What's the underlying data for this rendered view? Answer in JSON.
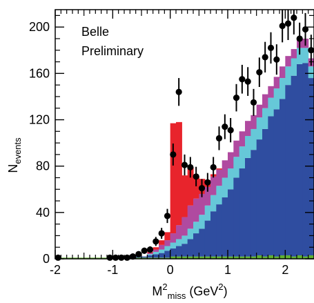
{
  "chart_data": {
    "type": "bar",
    "stacked": true,
    "ylabel": {
      "main": "N",
      "sub": "events"
    },
    "xlabel": {
      "prefix": "M",
      "sup": "2",
      "sub": "miss",
      "unit_open": " (GeV",
      "unit_sup": "2",
      "unit_close": ")"
    },
    "annotation": [
      "Belle",
      "Preliminary"
    ],
    "xlim": [
      -2.0,
      2.5
    ],
    "ylim": [
      0,
      215
    ],
    "x_ticks": [
      -2,
      -1,
      0,
      1,
      2
    ],
    "y_ticks": [
      0,
      40,
      80,
      120,
      160,
      200
    ],
    "bin_width": 0.1,
    "bin_start": -2.0,
    "colors": {
      "green": "#5fb030",
      "blue": "#2f4da0",
      "cyan": "#66c8d8",
      "magenta": "#b04aa0",
      "red": "#e8242c"
    },
    "series": [
      {
        "key": "green",
        "values": [
          1,
          1,
          1,
          1,
          1,
          1,
          1,
          1,
          1,
          1,
          1,
          1,
          1,
          1,
          1,
          1,
          1,
          1,
          1,
          1,
          2,
          2,
          2,
          2,
          2,
          2,
          2,
          2,
          2,
          2,
          2,
          2,
          2,
          2,
          2,
          3,
          2,
          3,
          2,
          3,
          3,
          2,
          3,
          2,
          3
        ]
      },
      {
        "key": "blue",
        "values": [
          0,
          0,
          0,
          0,
          0,
          0,
          0,
          0,
          0,
          0,
          0,
          0,
          0,
          0,
          1,
          1,
          2,
          3,
          4,
          6,
          7,
          9,
          11,
          15,
          20,
          24,
          31,
          39,
          45,
          51,
          58,
          68,
          76,
          85,
          92,
          100,
          110,
          120,
          127,
          135,
          147,
          156,
          165,
          167,
          153
        ]
      },
      {
        "key": "cyan",
        "values": [
          0,
          0,
          0,
          0,
          0,
          0,
          0,
          0,
          0,
          0,
          0,
          0,
          0,
          0,
          0,
          0,
          1,
          2,
          3,
          4,
          5,
          6,
          7,
          9,
          10,
          12,
          13,
          14,
          16,
          17,
          18,
          18,
          19,
          19,
          18,
          19,
          18,
          16,
          18,
          18,
          16,
          15,
          14,
          13,
          10
        ]
      },
      {
        "key": "magenta",
        "values": [
          0,
          0,
          0,
          0,
          0,
          0,
          0,
          0,
          0,
          0,
          0,
          0,
          0,
          0,
          0,
          0,
          1,
          2,
          4,
          5,
          8,
          12,
          16,
          20,
          20,
          18,
          16,
          16,
          14,
          15,
          14,
          14,
          13,
          13,
          12,
          11,
          12,
          10,
          10,
          10,
          9,
          8,
          8,
          8,
          7
        ]
      },
      {
        "key": "red",
        "values": [
          0,
          0,
          0,
          0,
          0,
          0,
          0,
          0,
          0,
          0,
          0,
          0,
          0,
          0,
          0,
          0,
          1,
          2,
          4,
          7,
          95,
          89,
          36,
          33,
          19,
          13,
          6,
          2,
          1,
          0,
          0,
          0,
          0,
          0,
          0,
          0,
          0,
          0,
          0,
          0,
          0,
          0,
          0,
          0,
          0
        ]
      }
    ],
    "data_points": {
      "x": [
        -1.95,
        -1.05,
        -0.95,
        -0.85,
        -0.75,
        -0.65,
        -0.55,
        -0.45,
        -0.35,
        -0.25,
        -0.15,
        -0.05,
        0.05,
        0.15,
        0.25,
        0.35,
        0.45,
        0.55,
        0.65,
        0.75,
        0.85,
        0.95,
        1.05,
        1.15,
        1.25,
        1.35,
        1.45,
        1.55,
        1.65,
        1.75,
        1.85,
        1.95,
        2.05,
        2.15,
        2.25,
        2.35,
        2.45
      ],
      "y": [
        1,
        1,
        1,
        1,
        1,
        2,
        4,
        7,
        8,
        15,
        22,
        37,
        90,
        144,
        81,
        79,
        71,
        61,
        66,
        79,
        104,
        114,
        111,
        139,
        155,
        153,
        135,
        161,
        174,
        182,
        172,
        201,
        203,
        208,
        190,
        198,
        180
      ],
      "err": [
        1,
        1,
        1,
        1,
        1,
        1.4,
        2,
        2.6,
        2.8,
        3.9,
        4.7,
        6.1,
        9.5,
        12,
        9,
        8.9,
        8.4,
        7.8,
        8.1,
        8.9,
        10.2,
        10.7,
        10.5,
        11.8,
        12.4,
        12.4,
        11.6,
        12.7,
        13.2,
        13.5,
        13.1,
        14.2,
        14.2,
        14.4,
        13.8,
        14.1,
        13.4
      ]
    }
  }
}
